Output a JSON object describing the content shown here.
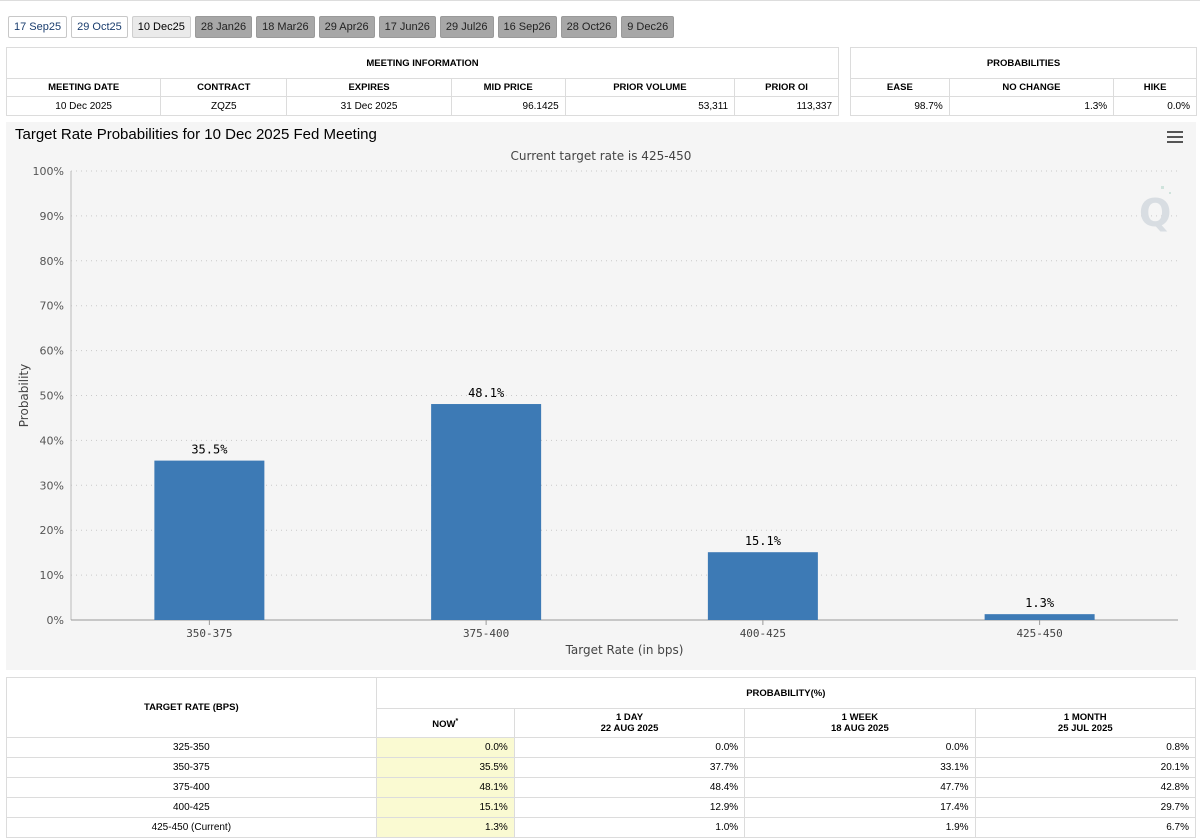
{
  "tabs": [
    {
      "label": "17 Sep25",
      "state": "past"
    },
    {
      "label": "29 Oct25",
      "state": "past"
    },
    {
      "label": "10 Dec25",
      "state": "active"
    },
    {
      "label": "28 Jan26",
      "state": "future"
    },
    {
      "label": "18 Mar26",
      "state": "future"
    },
    {
      "label": "29 Apr26",
      "state": "future"
    },
    {
      "label": "17 Jun26",
      "state": "future"
    },
    {
      "label": "29 Jul26",
      "state": "future"
    },
    {
      "label": "16 Sep26",
      "state": "future"
    },
    {
      "label": "28 Oct26",
      "state": "future"
    },
    {
      "label": "9 Dec26",
      "state": "future"
    }
  ],
  "meeting_info": {
    "title": "MEETING INFORMATION",
    "headers": [
      "MEETING DATE",
      "CONTRACT",
      "EXPIRES",
      "MID PRICE",
      "PRIOR VOLUME",
      "PRIOR OI"
    ],
    "row": [
      "10 Dec 2025",
      "ZQZ5",
      "31 Dec 2025",
      "96.1425",
      "53,311",
      "113,337"
    ]
  },
  "probabilities": {
    "title": "PROBABILITIES",
    "headers": [
      "EASE",
      "NO CHANGE",
      "HIKE"
    ],
    "row": [
      "98.7%",
      "1.3%",
      "0.0%"
    ]
  },
  "chart": {
    "title": "Target Rate Probabilities for 10 Dec 2025 Fed Meeting",
    "subtitle": "Current target rate is 425-450"
  },
  "chart_data": {
    "type": "bar",
    "categories": [
      "350-375",
      "375-400",
      "400-425",
      "425-450"
    ],
    "values": [
      35.5,
      48.1,
      15.1,
      1.3
    ],
    "data_labels": [
      "35.5%",
      "48.1%",
      "15.1%",
      "1.3%"
    ],
    "xlabel": "Target Rate (in bps)",
    "ylabel": "Probability",
    "ylim": [
      0,
      100
    ],
    "yticks": [
      "0%",
      "10%",
      "20%",
      "30%",
      "40%",
      "50%",
      "60%",
      "70%",
      "80%",
      "90%",
      "100%"
    ],
    "grid": true,
    "bar_color": "#3d7ab5"
  },
  "prob_table": {
    "col1": "TARGET RATE (BPS)",
    "group": "PROBABILITY(%)",
    "now": "NOW",
    "now_mark": "*",
    "day_label": "1 DAY",
    "day_date": "22 AUG 2025",
    "week_label": "1 WEEK",
    "week_date": "18 AUG 2025",
    "month_label": "1 MONTH",
    "month_date": "25 JUL 2025",
    "rows": [
      {
        "rate": "325-350",
        "now": "0.0%",
        "day": "0.0%",
        "week": "0.0%",
        "month": "0.8%"
      },
      {
        "rate": "350-375",
        "now": "35.5%",
        "day": "37.7%",
        "week": "33.1%",
        "month": "20.1%"
      },
      {
        "rate": "375-400",
        "now": "48.1%",
        "day": "48.4%",
        "week": "47.7%",
        "month": "42.8%"
      },
      {
        "rate": "400-425",
        "now": "15.1%",
        "day": "12.9%",
        "week": "17.4%",
        "month": "29.7%"
      },
      {
        "rate": "425-450 (Current)",
        "now": "1.3%",
        "day": "1.0%",
        "week": "1.9%",
        "month": "6.7%"
      }
    ]
  }
}
